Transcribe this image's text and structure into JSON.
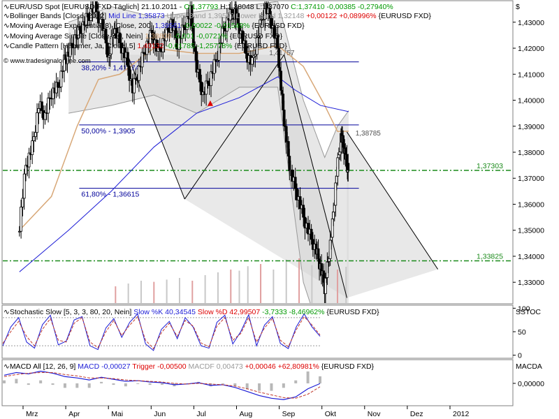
{
  "window": {
    "watermark": "© www.tradesignalonline.com"
  },
  "colors": {
    "candle_body": "#000000",
    "bollinger": "#9a9a9a",
    "ema200": "#1c1cd6",
    "sma50": "#d8a878",
    "fib_line": "#00009a",
    "support_line": "#1a8a1a",
    "trend_line": "#000000",
    "stoch_k": "#1c1cd6",
    "stoch_d": "#c0392b",
    "macd": "#1c1cd6",
    "trigger": "#c0392b",
    "hammer_marker": "#dd0000",
    "pos": "#009900",
    "neg": "#dd0000"
  },
  "main_legend": [
    {
      "parts": [
        {
          "t": "EUR/USD Spot [EURUSD FXD  Täglich] 21.10.2011 - ",
          "c": "#000000"
        },
        {
          "t": "O:1,37793 ",
          "c": "#009900"
        },
        {
          "t": "H:1,38048 L:1,37070 ",
          "c": "#000000"
        },
        {
          "t": "C:1,37410 -0,00385 -0,27940%",
          "c": "#009900"
        }
      ]
    },
    {
      "parts": [
        {
          "t": "Bollinger Bands [Close, 20, 2] ",
          "c": "#000000"
        },
        {
          "t": "Mid Line 1,35873 ",
          "c": "#1c1cd6"
        },
        {
          "t": "Upper Band 1,39599 Lower Band 1,32148 ",
          "c": "#9a9a9a"
        },
        {
          "t": "+0,00122 +0,08996% ",
          "c": "#dd0000"
        },
        {
          "t": "{EURUSD FXD}",
          "c": "#000000"
        }
      ]
    },
    {
      "parts": [
        {
          "t": "Moving Average Exponential(3) [Close, 200] ",
          "c": "#000000"
        },
        {
          "t": "1,39561 ",
          "c": "#1c1cd6"
        },
        {
          "t": "-0,00022 -0,01549% ",
          "c": "#009900"
        },
        {
          "t": "{EURUSD FXD}",
          "c": "#000000"
        }
      ]
    },
    {
      "parts": [
        {
          "t": "Moving Average Simple [Close, 50, Nein] ",
          "c": "#000000"
        },
        {
          "t": "1,38808 ",
          "c": "#d8a878"
        },
        {
          "t": "-0,001 -0,0721% ",
          "c": "#009900"
        },
        {
          "t": "{EURUSD FXD}",
          "c": "#000000"
        }
      ]
    },
    {
      "parts": [
        {
          "t": "Candle Pattern [Hammer, Ja, Close, 5] ",
          "c": "#000000"
        },
        {
          "t": "1,40132 ",
          "c": "#dd0000"
        },
        {
          "t": "-0,01785 -1,25778% ",
          "c": "#009900"
        },
        {
          "t": "{EURUSD FXD}",
          "c": "#000000"
        }
      ]
    }
  ],
  "stoch_legend": [
    {
      "t": "Stochastic Slow [5, 3, 3, 80, 20, Nein] ",
      "c": "#000000"
    },
    {
      "t": "Slow %K 40,34545 ",
      "c": "#1c1cd6"
    },
    {
      "t": "Slow %D 42,99507 ",
      "c": "#dd0000"
    },
    {
      "t": "-3,7333 -8,46962% ",
      "c": "#009900"
    },
    {
      "t": "{EURUSD FXD}",
      "c": "#000000"
    }
  ],
  "macd_legend": [
    {
      "t": "MACD All [12, 26, 9] ",
      "c": "#000000"
    },
    {
      "t": "MACD -0,00027 ",
      "c": "#1c1cd6"
    },
    {
      "t": "Trigger -0,00500 ",
      "c": "#dd0000"
    },
    {
      "t": "MACDF 0,00473 ",
      "c": "#9a9a9a"
    },
    {
      "t": "+0,00046 +62,80981% ",
      "c": "#dd0000"
    },
    {
      "t": "{EURUSD FXD}",
      "c": "#000000"
    }
  ],
  "chart_data": [
    {
      "type": "candlestick",
      "instrument": "EUR/USD Spot",
      "currency_label": "$",
      "ylim": [
        1.322,
        1.438
      ],
      "y_ticks": [
        1.33,
        1.34,
        1.35,
        1.36,
        1.37,
        1.38,
        1.39,
        1.4,
        1.41,
        1.42,
        1.43
      ],
      "y_tick_labels": [
        "1,33000",
        "1,34000",
        "1,35000",
        "1,36000",
        "1,37000",
        "1,38000",
        "1,39000",
        "1,40000",
        "1,41000",
        "1,42000",
        "1,43000"
      ],
      "x_labels": [
        "Mrz",
        "Apr",
        "Mai",
        "Jun",
        "Jul",
        "Aug",
        "Sep",
        "Okt",
        "Nov",
        "Dez",
        "2012"
      ],
      "x_label_positions": [
        0,
        1,
        2,
        3,
        4,
        5,
        6,
        7,
        8,
        9,
        10
      ],
      "x_domain": [
        -0.15,
        10.6
      ],
      "fib_levels": [
        {
          "label": "38,20% - 1,41474",
          "value": 1.41474
        },
        {
          "label": "50,00% - 1,3905",
          "value": 1.3905
        },
        {
          "label": "61,80% - 1,36615",
          "value": 1.36615
        }
      ],
      "horizontal_levels": [
        {
          "label": "1,37303",
          "value": 1.37303
        },
        {
          "label": "1,33825",
          "value": 1.33825
        }
      ],
      "trendline_labels": [
        {
          "label": "1,41757",
          "value": 1.41757
        },
        {
          "label": "1,38785",
          "value": 1.38785
        }
      ],
      "hammer_signal": {
        "x": 4.32,
        "value": 1.39885
      },
      "daily_close": [
        [
          -0.15,
          1.352
        ],
        [
          0.0,
          1.375
        ],
        [
          0.15,
          1.382
        ],
        [
          0.3,
          1.398
        ],
        [
          0.45,
          1.394
        ],
        [
          0.6,
          1.403
        ],
        [
          0.75,
          1.405
        ],
        [
          0.9,
          1.415
        ],
        [
          1.0,
          1.418
        ],
        [
          1.15,
          1.424
        ],
        [
          1.3,
          1.428
        ],
        [
          1.45,
          1.432
        ],
        [
          1.6,
          1.436
        ],
        [
          1.8,
          1.428
        ],
        [
          1.95,
          1.416
        ],
        [
          2.05,
          1.428
        ],
        [
          2.2,
          1.422
        ],
        [
          2.35,
          1.416
        ],
        [
          2.5,
          1.404
        ],
        [
          2.65,
          1.412
        ],
        [
          2.8,
          1.42
        ],
        [
          2.95,
          1.426
        ],
        [
          3.1,
          1.418
        ],
        [
          3.25,
          1.424
        ],
        [
          3.4,
          1.43
        ],
        [
          3.55,
          1.422
        ],
        [
          3.7,
          1.428
        ],
        [
          3.85,
          1.434
        ],
        [
          4.0,
          1.412
        ],
        [
          4.15,
          1.402
        ],
        [
          4.3,
          1.408
        ],
        [
          4.45,
          1.415
        ],
        [
          4.6,
          1.426
        ],
        [
          4.75,
          1.432
        ],
        [
          4.9,
          1.434
        ],
        [
          5.0,
          1.428
        ],
        [
          5.15,
          1.418
        ],
        [
          5.3,
          1.414
        ],
        [
          5.45,
          1.426
        ],
        [
          5.6,
          1.436
        ],
        [
          5.75,
          1.43
        ],
        [
          5.9,
          1.42
        ],
        [
          6.0,
          1.4
        ],
        [
          6.1,
          1.385
        ],
        [
          6.2,
          1.372
        ],
        [
          6.35,
          1.364
        ],
        [
          6.5,
          1.355
        ],
        [
          6.65,
          1.348
        ],
        [
          6.8,
          1.342
        ],
        [
          6.9,
          1.336
        ],
        [
          7.0,
          1.328
        ],
        [
          7.08,
          1.338
        ],
        [
          7.18,
          1.352
        ],
        [
          7.28,
          1.372
        ],
        [
          7.38,
          1.386
        ],
        [
          7.45,
          1.382
        ],
        [
          7.52,
          1.375
        ],
        [
          7.56,
          1.3741
        ]
      ],
      "bollinger": {
        "upper": [
          [
            1.0,
            1.43
          ],
          [
            2.0,
            1.436
          ],
          [
            3.0,
            1.432
          ],
          [
            4.0,
            1.434
          ],
          [
            5.0,
            1.436
          ],
          [
            5.9,
            1.438
          ],
          [
            6.5,
            1.4
          ],
          [
            7.0,
            1.378
          ],
          [
            7.3,
            1.39
          ],
          [
            7.56,
            1.39599
          ]
        ],
        "lower": [
          [
            1.0,
            1.395
          ],
          [
            2.0,
            1.398
          ],
          [
            3.0,
            1.402
          ],
          [
            4.0,
            1.395
          ],
          [
            5.0,
            1.405
          ],
          [
            5.9,
            1.405
          ],
          [
            6.5,
            1.33
          ],
          [
            7.0,
            1.305
          ],
          [
            7.3,
            1.315
          ],
          [
            7.56,
            1.32148
          ]
        ]
      },
      "ema200": [
        [
          -0.15,
          1.334
        ],
        [
          1.0,
          1.35
        ],
        [
          2.0,
          1.365
        ],
        [
          3.0,
          1.382
        ],
        [
          4.0,
          1.395
        ],
        [
          5.0,
          1.401
        ],
        [
          5.9,
          1.409
        ],
        [
          6.3,
          1.404
        ],
        [
          6.9,
          1.398
        ],
        [
          7.56,
          1.39561
        ]
      ],
      "sma50": [
        [
          -0.15,
          1.35
        ],
        [
          0.6,
          1.363
        ],
        [
          1.2,
          1.39
        ],
        [
          1.7,
          1.408
        ],
        [
          2.2,
          1.41
        ],
        [
          3.0,
          1.42
        ],
        [
          4.0,
          1.418
        ],
        [
          5.0,
          1.418
        ],
        [
          5.9,
          1.421
        ],
        [
          6.5,
          1.413
        ],
        [
          7.0,
          1.398
        ],
        [
          7.3,
          1.388
        ],
        [
          7.56,
          1.38808
        ]
      ],
      "volume": [
        [
          2.1,
          0.3
        ],
        [
          2.4,
          0.35
        ],
        [
          2.7,
          0.4
        ],
        [
          3.0,
          0.38
        ],
        [
          3.3,
          0.42
        ],
        [
          3.6,
          0.45
        ],
        [
          3.9,
          0.4
        ],
        [
          4.2,
          0.5
        ],
        [
          4.5,
          0.55
        ],
        [
          4.8,
          0.6
        ],
        [
          5.0,
          0.58
        ],
        [
          5.2,
          0.66
        ],
        [
          5.5,
          0.7
        ],
        [
          5.8,
          0.6
        ],
        [
          6.1,
          0.78
        ],
        [
          6.4,
          0.8
        ],
        [
          6.7,
          0.68
        ],
        [
          7.0,
          0.72
        ],
        [
          7.3,
          0.6
        ],
        [
          7.5,
          0.65
        ]
      ],
      "trendlines": [
        {
          "from": [
            2.38,
            1.4175
          ],
          "to": [
            3.72,
            1.362
          ]
        },
        {
          "from": [
            3.72,
            1.362
          ],
          "to": [
            6.05,
            1.4175
          ]
        },
        {
          "from": [
            6.05,
            1.4175
          ],
          "to": [
            7.52,
            1.324
          ]
        },
        {
          "from": [
            7.52,
            1.3878
          ],
          "to": [
            9.65,
            1.335
          ]
        }
      ]
    },
    {
      "type": "line",
      "name": "Stochastic Slow",
      "panel_label": "SSTOC",
      "ylim": [
        -5,
        105
      ],
      "y_ticks": [
        0,
        50,
        100
      ],
      "y_tick_labels": [
        "0",
        "50",
        "100"
      ],
      "reference_lines": [
        20,
        80
      ],
      "series": [
        {
          "name": "Slow %K",
          "values": [
            20,
            60,
            80,
            28,
            15,
            65,
            85,
            22,
            30,
            75,
            82,
            20,
            12,
            58,
            78,
            38,
            70,
            88,
            24,
            10,
            55,
            72,
            35,
            80,
            60,
            20,
            15,
            70,
            85,
            24,
            50,
            86,
            20,
            64,
            82,
            25,
            14,
            60,
            88,
            60,
            40.3
          ]
        },
        {
          "name": "Slow %D",
          "values": [
            25,
            50,
            72,
            40,
            20,
            55,
            78,
            32,
            28,
            68,
            80,
            28,
            16,
            50,
            74,
            42,
            64,
            82,
            32,
            14,
            48,
            68,
            40,
            74,
            62,
            26,
            18,
            62,
            80,
            32,
            46,
            80,
            28,
            58,
            78,
            32,
            18,
            54,
            82,
            64,
            43.0
          ]
        }
      ]
    },
    {
      "type": "line",
      "name": "MACD All",
      "panel_label": "MACDA",
      "ylim": [
        -0.032,
        0.034
      ],
      "y_ticks": [
        0.0
      ],
      "y_tick_labels": [
        "0,00000"
      ],
      "series": [
        {
          "name": "MACD",
          "values": [
            0.012,
            0.016,
            0.014,
            0.018,
            0.015,
            0.01,
            0.008,
            0.005,
            0.009,
            0.006,
            0.003,
            0.004,
            0.002,
            0.001,
            -0.002,
            -0.001,
            0.001,
            -0.003,
            -0.002,
            -0.006,
            -0.012,
            -0.018,
            -0.022,
            -0.024,
            -0.02,
            -0.008,
            -0.0003
          ]
        },
        {
          "name": "Trigger",
          "values": [
            0.01,
            0.013,
            0.015,
            0.016,
            0.016,
            0.013,
            0.011,
            0.008,
            0.008,
            0.007,
            0.005,
            0.004,
            0.003,
            0.002,
            0.0,
            -0.001,
            0.0,
            -0.001,
            -0.002,
            -0.004,
            -0.008,
            -0.013,
            -0.017,
            -0.021,
            -0.022,
            -0.016,
            -0.005
          ]
        },
        {
          "name": "MACDF",
          "values": [
            0.002,
            0.003,
            -0.001,
            0.002,
            -0.001,
            -0.003,
            -0.003,
            -0.003,
            0.001,
            -0.001,
            -0.002,
            0.0,
            -0.001,
            -0.001,
            -0.002,
            0.0,
            0.001,
            -0.002,
            0.0,
            -0.002,
            -0.004,
            -0.005,
            -0.005,
            -0.003,
            0.002,
            0.008,
            0.00473
          ]
        }
      ]
    }
  ]
}
